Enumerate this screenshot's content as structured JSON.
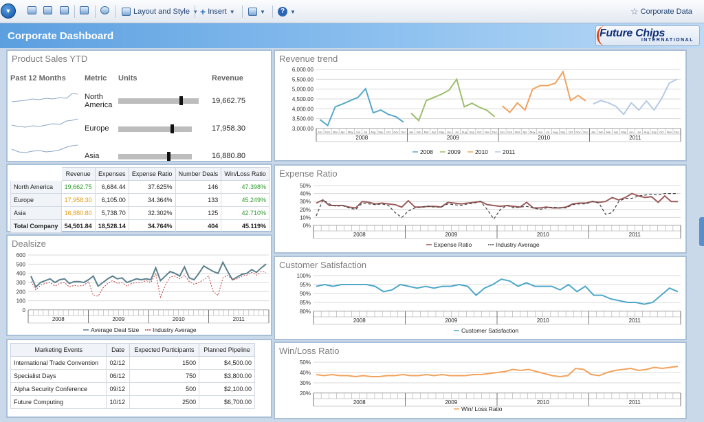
{
  "toolbar": {
    "layout_label": "Layout and Style",
    "insert_label": "Insert",
    "corporate_data_label": "Corporate Data"
  },
  "colors": {
    "y2008": "#56a8c7",
    "y2009": "#9cbf6a",
    "y2010": "#f0a25c",
    "y2011": "#b5c9e5",
    "expense": "#9b5b5b",
    "dealsize": "#5a7f8c",
    "satisfaction": "#4ea7c8",
    "winloss": "#f2a35c",
    "industry_dash": "#444444",
    "industry_red": "#c23a3a",
    "green_text": "#2d9c2d",
    "orange_text": "#e19b12"
  },
  "header": {
    "title": "Corporate Dashboard",
    "logo_name": "Future Chips",
    "logo_sub": "INTERNATIONAL"
  },
  "product_sales": {
    "title": "Product Sales YTD",
    "col_past": "Past 12 Months",
    "col_metric": "Metric",
    "col_units": "Units",
    "col_revenue": "Revenue",
    "rows": [
      {
        "region": "North America",
        "revenue": "19,662.75",
        "units_fraction": 0.78
      },
      {
        "region": "Europe",
        "revenue": "17,958.30",
        "units_fraction": 0.73
      },
      {
        "region": "Asia",
        "revenue": "16,880.80",
        "units_fraction": 0.68
      }
    ]
  },
  "summary_table": {
    "headers": [
      "",
      "Revenue",
      "Expenses",
      "Expense Ratio",
      "Number Deals",
      "Win/Loss Ratio"
    ],
    "rows": [
      {
        "name": "North America",
        "revenue": "19,662.75",
        "expenses": "6,684.44",
        "ratio": "37.625%",
        "deals": "146",
        "winloss": "47.398%"
      },
      {
        "name": "Europe",
        "revenue": "17,958.30",
        "expenses": "6,105.00",
        "ratio": "34.364%",
        "deals": "133",
        "winloss": "45.249%"
      },
      {
        "name": "Asia",
        "revenue": "16,880.80",
        "expenses": "5,738.70",
        "ratio": "32.302%",
        "deals": "125",
        "winloss": "42.710%"
      }
    ],
    "total": {
      "name": "Total Company",
      "revenue": "54,501.84",
      "expenses": "18,528.14",
      "ratio": "34.764%",
      "deals": "404",
      "winloss": "45.119%"
    }
  },
  "events_table": {
    "headers": [
      "Marketing Events",
      "Date",
      "Expected Participants",
      "Planned Pipeline"
    ],
    "rows": [
      {
        "event": "International Trade Convention",
        "date": "02/12",
        "participants": "1500",
        "pipeline": "$4,500.00"
      },
      {
        "event": "Specialist Days",
        "date": "06/12",
        "participants": "750",
        "pipeline": "$3,800.00"
      },
      {
        "event": "Alpha Security Conference",
        "date": "09/12",
        "participants": "500",
        "pipeline": "$2,100.00"
      },
      {
        "event": "Future Computing",
        "date": "10/12",
        "participants": "2500",
        "pipeline": "$6,700.00"
      }
    ]
  },
  "chart_data": [
    {
      "id": "revenue_trend",
      "title": "Revenue trend",
      "type": "line",
      "ylim": [
        3000,
        6000
      ],
      "yticks": [
        3000,
        3500,
        4000,
        4500,
        5000,
        5500,
        6000
      ],
      "ytick_labels": [
        "3,000.00",
        "3,500.00",
        "4,000.00",
        "4,500.00",
        "5,000.00",
        "5,500.00",
        "6,000.00"
      ],
      "months": [
        "Jan",
        "Feb",
        "Mar",
        "Apr",
        "May",
        "Jun",
        "Jul",
        "Aug",
        "Sep",
        "Oct",
        "Nov",
        "Dec"
      ],
      "years": [
        "2008",
        "2009",
        "2010",
        "2011"
      ],
      "legend": [
        "2008",
        "2009",
        "2010",
        "2011"
      ],
      "series": [
        {
          "name": "2008",
          "values": [
            3450,
            3150,
            4100,
            4250,
            4420,
            4580,
            5020,
            3800,
            3940,
            3720,
            3600,
            3320
          ]
        },
        {
          "name": "2009",
          "values": [
            3780,
            3400,
            4420,
            4580,
            4740,
            4950,
            5500,
            4100,
            4280,
            4080,
            3920,
            3600
          ]
        },
        {
          "name": "2010",
          "values": [
            4150,
            3820,
            4300,
            3940,
            5000,
            5180,
            5180,
            5300,
            5880,
            4420,
            4680,
            4400
          ]
        },
        {
          "name": "2011",
          "values": [
            4250,
            4420,
            4300,
            4120,
            3720,
            4300,
            3940,
            4400,
            3940,
            4520,
            5300,
            5500
          ]
        }
      ]
    },
    {
      "id": "expense_ratio",
      "title": "Expense Ratio",
      "type": "line",
      "ylim": [
        0,
        50
      ],
      "yticks": [
        0,
        10,
        20,
        30,
        40,
        50
      ],
      "ytick_labels": [
        "0%",
        "10%",
        "20%",
        "30%",
        "40%",
        "50%"
      ],
      "years": [
        "2008",
        "2009",
        "2010",
        "2011"
      ],
      "legend": [
        "Expense Ratio",
        "Industry Average"
      ],
      "series": [
        {
          "name": "Expense Ratio",
          "values": [
            28,
            32,
            25,
            25,
            25,
            23,
            22,
            30,
            29,
            27,
            28,
            27,
            26,
            23,
            31,
            23,
            23,
            24,
            24,
            23,
            29,
            28,
            27,
            28,
            29,
            30,
            26,
            25,
            24,
            25,
            24,
            23,
            29,
            22,
            22,
            23,
            22,
            22,
            23,
            27,
            28,
            28,
            30,
            29,
            30,
            35,
            32,
            35,
            40,
            37,
            35,
            36,
            29,
            37,
            30,
            30
          ]
        },
        {
          "name": "Industry Average",
          "values": [
            12,
            32,
            27,
            24,
            25,
            22,
            20,
            28,
            27,
            26,
            27,
            25,
            16,
            10,
            18,
            22,
            23,
            24,
            23,
            23,
            27,
            26,
            25,
            27,
            28,
            30,
            20,
            8,
            20,
            25,
            22,
            23,
            24,
            22,
            20,
            22,
            23,
            22,
            22,
            26,
            27,
            27,
            30,
            28,
            14,
            16,
            30,
            34,
            34,
            37,
            38,
            39,
            38,
            40,
            40,
            40
          ]
        }
      ]
    },
    {
      "id": "dealsize",
      "title": "Dealsize",
      "type": "line",
      "ylim": [
        0,
        600
      ],
      "yticks": [
        0,
        100,
        200,
        300,
        400,
        500,
        600
      ],
      "ytick_labels": [
        "0",
        "100",
        "200",
        "300",
        "400",
        "500",
        "600"
      ],
      "years": [
        "2008",
        "2009",
        "2010",
        "2011"
      ],
      "legend": [
        "Average Deal Size",
        "Industry Average"
      ],
      "series": [
        {
          "name": "Average Deal Size",
          "values": [
            370,
            250,
            300,
            320,
            340,
            300,
            330,
            340,
            290,
            310,
            310,
            300,
            330,
            370,
            260,
            300,
            340,
            370,
            340,
            350,
            300,
            320,
            340,
            330,
            340,
            330,
            460,
            320,
            370,
            420,
            400,
            370,
            470,
            350,
            330,
            400,
            480,
            450,
            420,
            400,
            520,
            420,
            330,
            360,
            390,
            400,
            440,
            410,
            460,
            500
          ]
        },
        {
          "name": "Industry Average",
          "values": [
            310,
            220,
            270,
            290,
            300,
            260,
            290,
            300,
            250,
            270,
            260,
            270,
            310,
            160,
            150,
            240,
            290,
            320,
            290,
            300,
            260,
            290,
            300,
            300,
            320,
            300,
            400,
            140,
            270,
            360,
            370,
            340,
            380,
            310,
            280,
            300,
            330,
            370,
            200,
            160,
            350,
            380,
            330,
            340,
            370,
            380,
            410,
            380,
            420,
            410
          ]
        }
      ]
    },
    {
      "id": "customer_satisfaction",
      "title": "Customer Satisfaction",
      "type": "line",
      "ylim": [
        80,
        100
      ],
      "yticks": [
        80,
        85,
        90,
        95,
        100
      ],
      "ytick_labels": [
        "80%",
        "85%",
        "90%",
        "95%",
        "100%"
      ],
      "years": [
        "2008",
        "2009",
        "2010",
        "2011"
      ],
      "legend": [
        "Customer Satisfaction"
      ],
      "series": [
        {
          "name": "Customer Satisfaction",
          "values": [
            94,
            95,
            94,
            95,
            95,
            95,
            95,
            94,
            91,
            92,
            95,
            94,
            93,
            94,
            93,
            94,
            94,
            95,
            94,
            89,
            93,
            95,
            98,
            97,
            94,
            96,
            94,
            94,
            94,
            92,
            95,
            91,
            94,
            89,
            89,
            87,
            86,
            85,
            85,
            84,
            85,
            89,
            93,
            91
          ]
        }
      ]
    },
    {
      "id": "win_loss_ratio",
      "title": "Win/Loss Ratio",
      "type": "line",
      "ylim": [
        20,
        50
      ],
      "yticks": [
        20,
        30,
        40,
        50
      ],
      "ytick_labels": [
        "20%",
        "30%",
        "40%",
        "50%"
      ],
      "years": [
        "2008",
        "2009",
        "2010",
        "2011"
      ],
      "legend": [
        "Win/ Loss Ratio"
      ],
      "series": [
        {
          "name": "Win/ Loss Ratio",
          "values": [
            38,
            37,
            38,
            37,
            37,
            36,
            37,
            36,
            36,
            37,
            37,
            38,
            37,
            37,
            38,
            37,
            38,
            37,
            37,
            37,
            38,
            38,
            39,
            40,
            41,
            43,
            42,
            43,
            41,
            39,
            37,
            36,
            37,
            44,
            43,
            38,
            37,
            40,
            42,
            43,
            44,
            42,
            43,
            45,
            44,
            45,
            46
          ]
        }
      ]
    }
  ]
}
